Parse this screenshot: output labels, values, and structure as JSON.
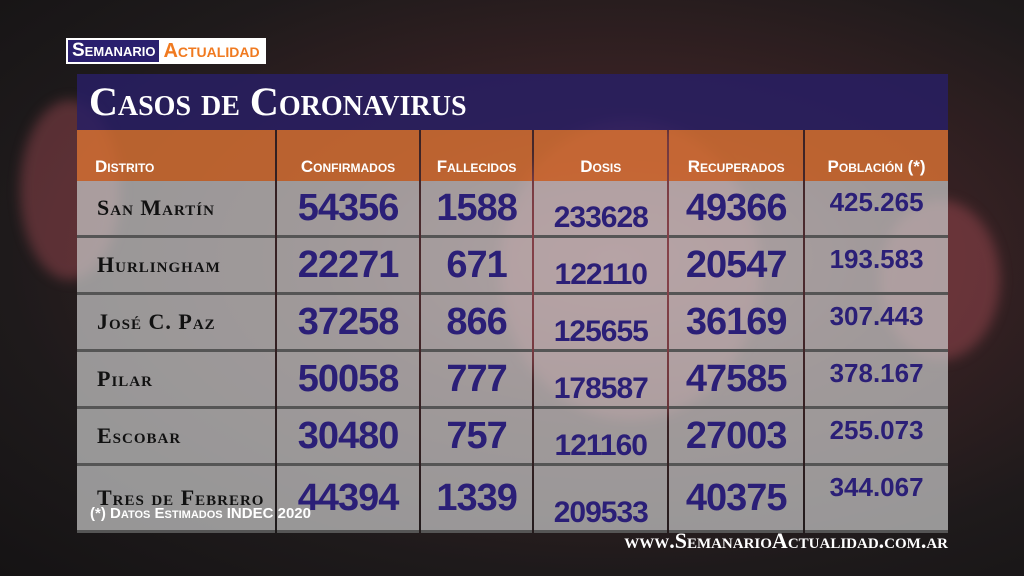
{
  "logo": {
    "part1": "Semanario",
    "part2": "Actualidad"
  },
  "title": "Casos de Coronavirus",
  "headers": [
    "Distrito",
    "Confirmados",
    "Fallecidos",
    "Dosis",
    "Recuperados",
    "Población (*)"
  ],
  "rows": [
    {
      "distrito": "San Martín",
      "confirmados": "54356",
      "fallecidos": "1588",
      "dosis": "233628",
      "recuperados": "49366",
      "poblacion": "425.265"
    },
    {
      "distrito": "Hurlingham",
      "confirmados": "22271",
      "fallecidos": "671",
      "dosis": "122110",
      "recuperados": "20547",
      "poblacion": "193.583"
    },
    {
      "distrito": "José C. Paz",
      "confirmados": "37258",
      "fallecidos": "866",
      "dosis": "125655",
      "recuperados": "36169",
      "poblacion": "307.443"
    },
    {
      "distrito": "Pilar",
      "confirmados": "50058",
      "fallecidos": "777",
      "dosis": "178587",
      "recuperados": "47585",
      "poblacion": "378.167"
    },
    {
      "distrito": "Escobar",
      "confirmados": "30480",
      "fallecidos": "757",
      "dosis": "121160",
      "recuperados": "27003",
      "poblacion": "255.073"
    },
    {
      "distrito": "Tres de Febrero",
      "confirmados": "44394",
      "fallecidos": "1339",
      "dosis": "209533",
      "recuperados": "40375",
      "poblacion": "344.067"
    }
  ],
  "footnote": "(*) Datos Estimados INDEC 2020",
  "website": "www.SemanarioActualidad.com.ar",
  "colors": {
    "title_band": "#281e64",
    "header_band": "#d26e32",
    "numbers": "#2b1f77"
  }
}
